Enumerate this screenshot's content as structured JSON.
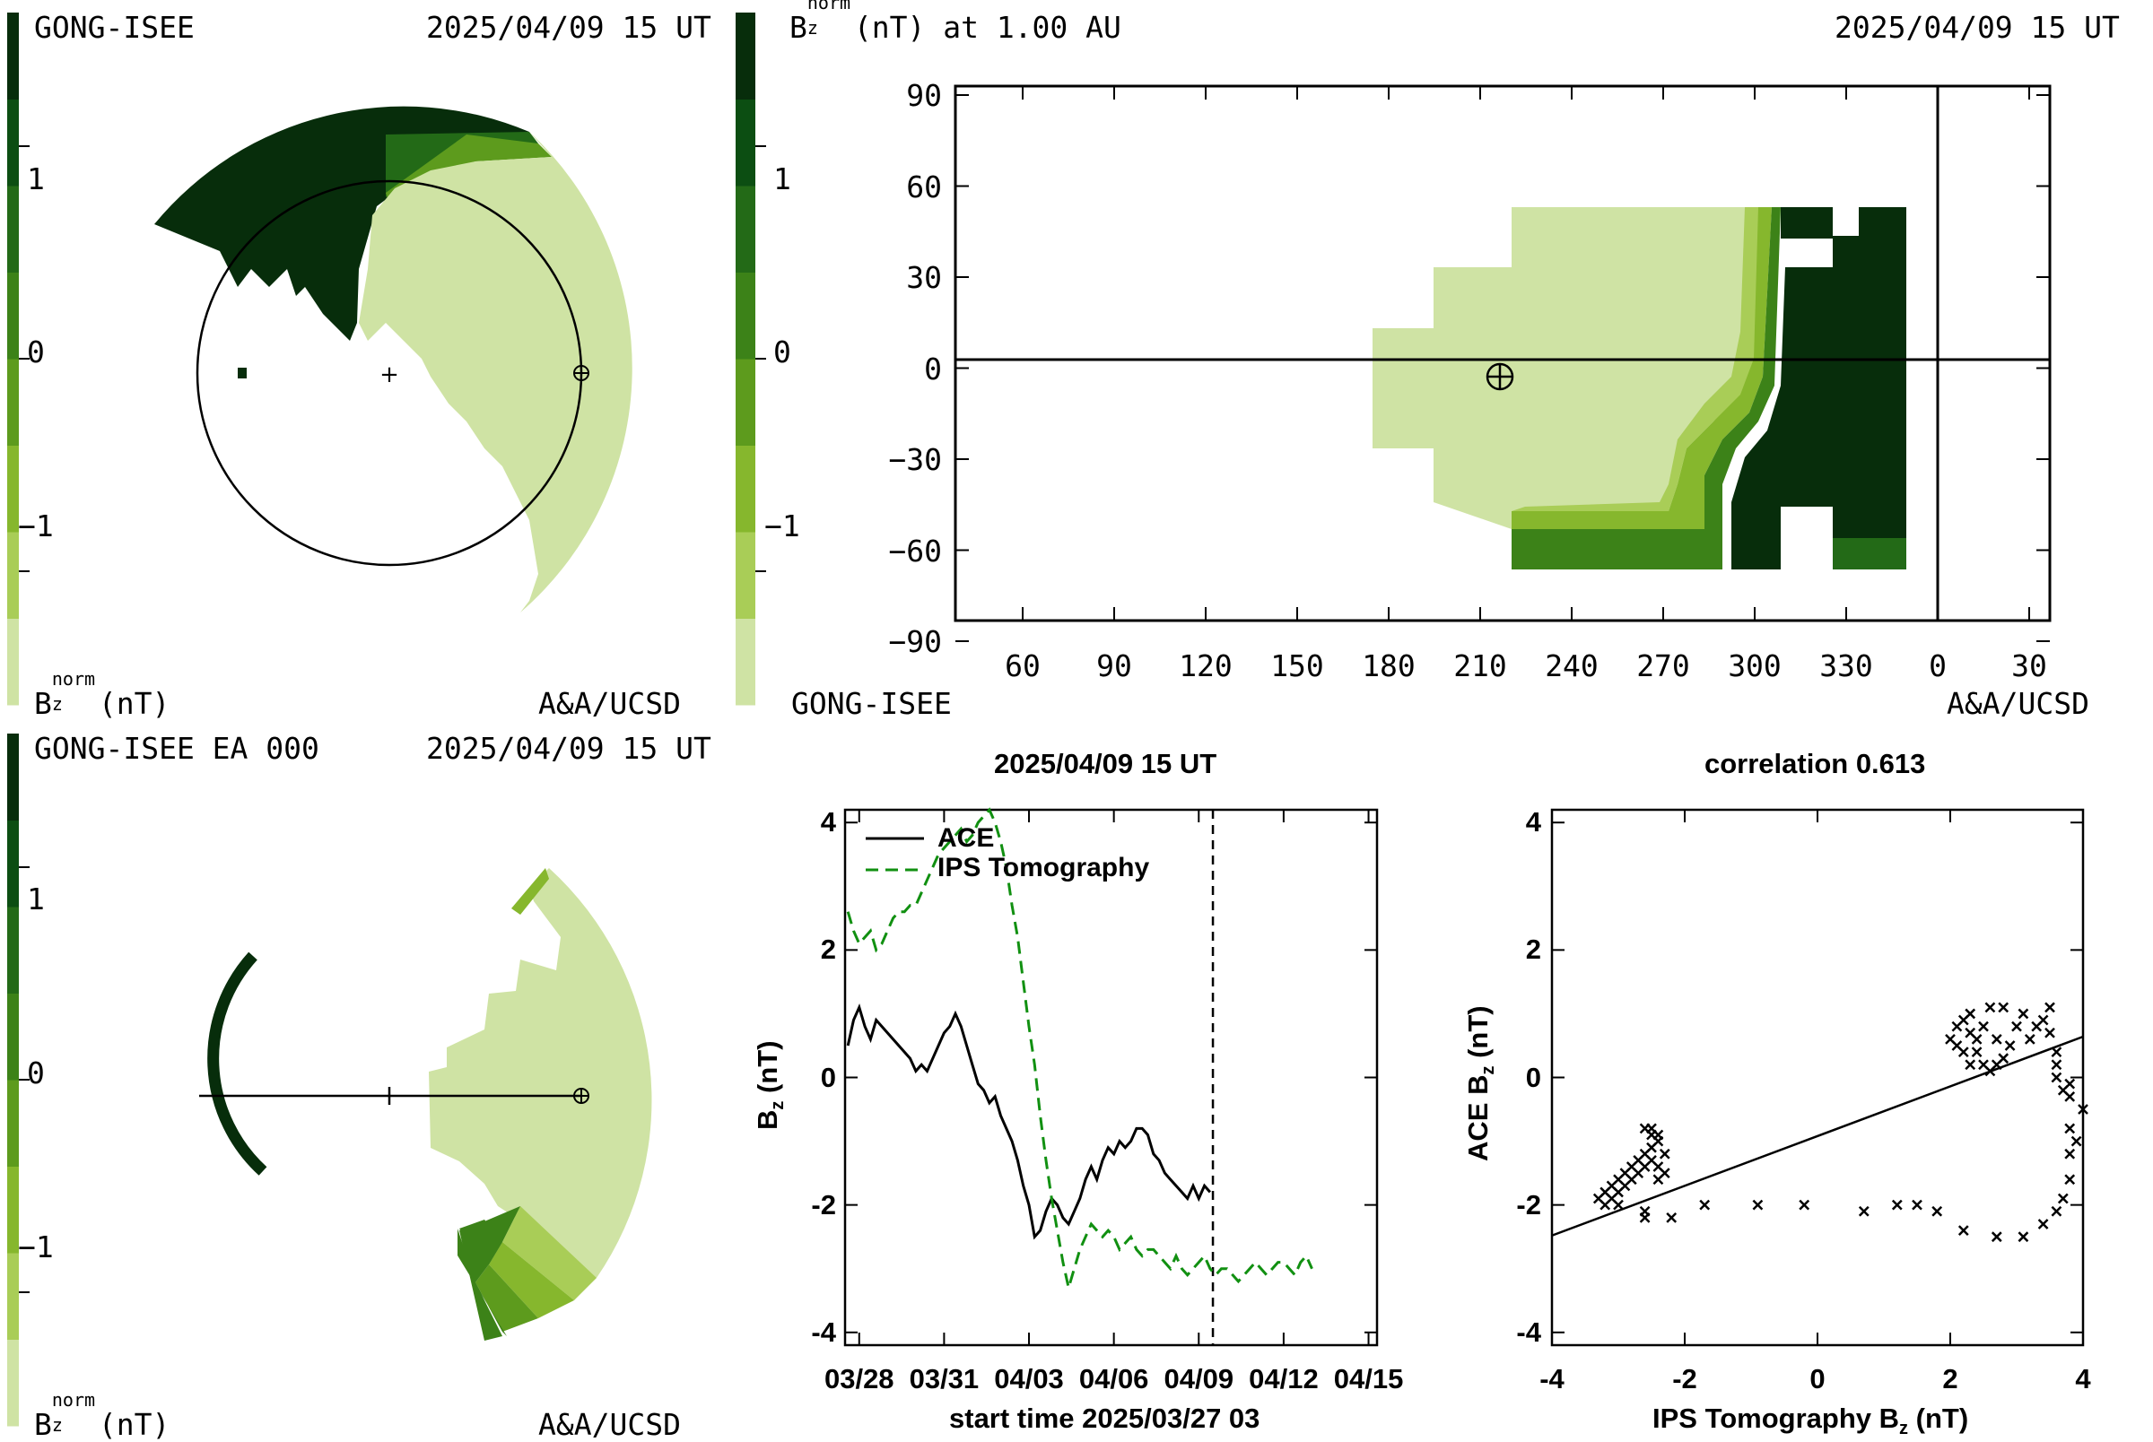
{
  "colors": {
    "scale": [
      "#cfe3a4",
      "#a9cd57",
      "#86b72d",
      "#5d9b1d",
      "#3c8218",
      "#236a17",
      "#0c4e12",
      "#072d0b"
    ],
    "line": "#000000",
    "ips": "#119011",
    "ace": "#000000"
  },
  "panel_tl": {
    "left_label": "GONG-ISEE",
    "right_label": "2025/04/09 15 UT",
    "colorbar_label_main": "B",
    "colorbar_label_sup": "norm",
    "colorbar_label_sub": "z",
    "colorbar_label_unit": "(nT)",
    "credit": "A&A/UCSD",
    "ticks": [
      "1",
      "0",
      "−1"
    ]
  },
  "panel_tr": {
    "title_main": "B",
    "title_sup": "norm",
    "title_sub": "z",
    "title_rest": "(nT) at 1.00 AU",
    "date": "2025/04/09 15 UT",
    "left_label": "GONG-ISEE",
    "credit": "A&A/UCSD",
    "colorbar_ticks": [
      "1",
      "0",
      "−1"
    ],
    "y_ticks": [
      "90",
      "60",
      "30",
      "0",
      "−30",
      "−60",
      "−90"
    ],
    "x_ticks": [
      "60",
      "90",
      "120",
      "150",
      "180",
      "210",
      "240",
      "270",
      "300",
      "330",
      "0",
      "30"
    ]
  },
  "panel_bl": {
    "left_label": "GONG-ISEE EA 000",
    "right_label": "2025/04/09 15 UT",
    "colorbar_label_main": "B",
    "colorbar_label_sup": "norm",
    "colorbar_label_sub": "z",
    "colorbar_label_unit": "(nT)",
    "credit": "A&A/UCSD",
    "ticks": [
      "1",
      "0",
      "−1"
    ]
  },
  "chart_data": [
    {
      "type": "line",
      "title": "2025/04/09 15 UT",
      "xlabel": "start time 2025/03/27 03",
      "ylabel_main": "B",
      "ylabel_sub": "z",
      "ylabel_unit": "(nT)",
      "x_tick_labels": [
        "03/28",
        "03/31",
        "04/03",
        "04/06",
        "04/09",
        "04/12",
        "04/15"
      ],
      "x_tick_days": [
        1,
        4,
        7,
        10,
        13,
        16,
        19
      ],
      "xlim_days": [
        0.5,
        19.3
      ],
      "ylim": [
        -4.2,
        4.2
      ],
      "y_ticks": [
        4,
        2,
        0,
        -2,
        -4
      ],
      "now_day": 13.5,
      "series": [
        {
          "name": "ACE",
          "style": "solid",
          "x": [
            0.6,
            0.8,
            1.0,
            1.2,
            1.4,
            1.6,
            1.8,
            2.0,
            2.2,
            2.4,
            2.6,
            2.8,
            3.0,
            3.2,
            3.4,
            3.6,
            3.8,
            4.0,
            4.2,
            4.4,
            4.6,
            4.8,
            5.0,
            5.2,
            5.4,
            5.6,
            5.8,
            6.0,
            6.2,
            6.4,
            6.6,
            6.8,
            7.0,
            7.2,
            7.4,
            7.6,
            7.8,
            8.0,
            8.2,
            8.4,
            8.6,
            8.8,
            9.0,
            9.2,
            9.4,
            9.6,
            9.8,
            10.0,
            10.2,
            10.4,
            10.6,
            10.8,
            11.0,
            11.2,
            11.4,
            11.6,
            11.8,
            12.0,
            12.2,
            12.4,
            12.6,
            12.8,
            13.0,
            13.2,
            13.4
          ],
          "y": [
            0.5,
            0.9,
            1.1,
            0.8,
            0.6,
            0.9,
            0.8,
            0.7,
            0.6,
            0.5,
            0.4,
            0.3,
            0.1,
            0.2,
            0.1,
            0.3,
            0.5,
            0.7,
            0.8,
            1.0,
            0.8,
            0.5,
            0.2,
            -0.1,
            -0.2,
            -0.4,
            -0.3,
            -0.6,
            -0.8,
            -1.0,
            -1.3,
            -1.7,
            -2.0,
            -2.5,
            -2.4,
            -2.1,
            -1.9,
            -2.0,
            -2.2,
            -2.3,
            -2.1,
            -1.9,
            -1.6,
            -1.4,
            -1.6,
            -1.3,
            -1.1,
            -1.2,
            -1.0,
            -1.1,
            -1.0,
            -0.8,
            -0.8,
            -0.9,
            -1.2,
            -1.3,
            -1.5,
            -1.6,
            -1.7,
            -1.8,
            -1.9,
            -1.7,
            -1.9,
            -1.7,
            -1.8
          ]
        },
        {
          "name": "IPS Tomography",
          "style": "dashed",
          "x": [
            0.6,
            0.8,
            1.0,
            1.2,
            1.4,
            1.6,
            1.8,
            2.0,
            2.2,
            2.4,
            2.6,
            2.8,
            3.0,
            3.2,
            3.4,
            3.6,
            3.8,
            4.0,
            4.2,
            4.4,
            4.6,
            4.8,
            5.0,
            5.2,
            5.4,
            5.6,
            5.8,
            6.0,
            6.2,
            6.4,
            6.6,
            6.8,
            7.0,
            7.2,
            7.4,
            7.6,
            7.8,
            8.0,
            8.2,
            8.4,
            8.6,
            8.8,
            9.0,
            9.2,
            9.4,
            9.6,
            9.8,
            10.0,
            10.2,
            10.4,
            10.6,
            10.8,
            11.0,
            11.2,
            11.4,
            11.6,
            11.8,
            12.0,
            12.2,
            12.4,
            12.6,
            12.8,
            13.0,
            13.2,
            13.4,
            13.6,
            13.8,
            14.0,
            14.2,
            14.4,
            14.6,
            14.8,
            15.0,
            15.2,
            15.4,
            15.6,
            15.8,
            16.0,
            16.2,
            16.4,
            16.6,
            16.8,
            17.0
          ],
          "y": [
            2.6,
            2.3,
            2.1,
            2.2,
            2.3,
            2.0,
            2.1,
            2.3,
            2.5,
            2.6,
            2.6,
            2.7,
            2.7,
            2.9,
            3.1,
            3.3,
            3.5,
            3.6,
            3.7,
            3.8,
            3.9,
            3.7,
            3.8,
            4.0,
            4.1,
            4.2,
            4.0,
            3.7,
            3.3,
            2.7,
            2.2,
            1.5,
            0.8,
            0.2,
            -0.6,
            -1.3,
            -1.9,
            -2.4,
            -2.9,
            -3.3,
            -3.0,
            -2.7,
            -2.5,
            -2.3,
            -2.4,
            -2.5,
            -2.4,
            -2.5,
            -2.7,
            -2.6,
            -2.5,
            -2.7,
            -2.8,
            -2.7,
            -2.7,
            -2.8,
            -2.9,
            -3.0,
            -2.8,
            -3.0,
            -3.1,
            -3.0,
            -2.9,
            -2.8,
            -3.0,
            -3.1,
            -3.0,
            -3.0,
            -3.1,
            -3.2,
            -3.1,
            -3.0,
            -2.9,
            -3.0,
            -3.1,
            -3.0,
            -2.9,
            -2.9,
            -3.0,
            -3.1,
            -2.9,
            -2.8,
            -3.0
          ]
        }
      ]
    },
    {
      "type": "scatter",
      "title": "correlation 0.613",
      "xlabel_main": "IPS Tomography B",
      "xlabel_sub": "z",
      "xlabel_unit": "(nT)",
      "ylabel_main": "ACE B",
      "ylabel_sub": "z",
      "ylabel_unit": "(nT)",
      "xlim": [
        -4,
        4
      ],
      "ylim": [
        -4.2,
        4.2
      ],
      "x_ticks": [
        -4,
        -2,
        0,
        2,
        4
      ],
      "y_ticks": [
        4,
        2,
        0,
        -2,
        -4
      ],
      "fit_line": {
        "slope": 0.39,
        "intercept": -0.92
      },
      "points": [
        [
          -3.3,
          -1.9
        ],
        [
          -3.2,
          -1.8
        ],
        [
          -3.2,
          -2.0
        ],
        [
          -3.1,
          -1.7
        ],
        [
          -3.1,
          -1.9
        ],
        [
          -3.0,
          -1.6
        ],
        [
          -3.0,
          -1.8
        ],
        [
          -3.0,
          -2.0
        ],
        [
          -2.9,
          -1.5
        ],
        [
          -2.9,
          -1.7
        ],
        [
          -2.8,
          -1.4
        ],
        [
          -2.8,
          -1.6
        ],
        [
          -2.7,
          -1.3
        ],
        [
          -2.7,
          -1.5
        ],
        [
          -2.6,
          -1.2
        ],
        [
          -2.6,
          -1.4
        ],
        [
          -2.5,
          -0.9
        ],
        [
          -2.5,
          -1.1
        ],
        [
          -2.5,
          -1.3
        ],
        [
          -2.4,
          -1.0
        ],
        [
          -2.4,
          -1.4
        ],
        [
          -2.4,
          -1.6
        ],
        [
          -2.3,
          -1.2
        ],
        [
          -2.3,
          -1.5
        ],
        [
          -2.6,
          -0.8
        ],
        [
          -2.5,
          -0.8
        ],
        [
          -2.4,
          -0.9
        ],
        [
          -2.6,
          -2.1
        ],
        [
          -2.6,
          -2.2
        ],
        [
          -2.2,
          -2.2
        ],
        [
          -1.7,
          -2.0
        ],
        [
          -0.9,
          -2.0
        ],
        [
          -0.2,
          -2.0
        ],
        [
          0.7,
          -2.1
        ],
        [
          1.2,
          -2.0
        ],
        [
          1.5,
          -2.0
        ],
        [
          1.8,
          -2.1
        ],
        [
          2.2,
          -2.4
        ],
        [
          2.7,
          -2.5
        ],
        [
          3.1,
          -2.5
        ],
        [
          3.4,
          -2.3
        ],
        [
          3.6,
          -2.1
        ],
        [
          3.7,
          -1.9
        ],
        [
          3.8,
          -1.6
        ],
        [
          3.8,
          -1.2
        ],
        [
          3.9,
          -1.0
        ],
        [
          3.8,
          -0.8
        ],
        [
          4.0,
          -0.5
        ],
        [
          3.8,
          -0.3
        ],
        [
          3.7,
          -0.2
        ],
        [
          3.6,
          0.0
        ],
        [
          3.6,
          0.2
        ],
        [
          3.8,
          -0.1
        ],
        [
          3.6,
          0.4
        ],
        [
          3.5,
          0.7
        ],
        [
          3.4,
          0.9
        ],
        [
          3.5,
          1.1
        ],
        [
          3.3,
          0.8
        ],
        [
          3.2,
          0.6
        ],
        [
          3.1,
          1.0
        ],
        [
          3.0,
          0.8
        ],
        [
          2.9,
          0.5
        ],
        [
          2.8,
          0.3
        ],
        [
          2.7,
          0.6
        ],
        [
          2.8,
          1.1
        ],
        [
          2.6,
          1.1
        ],
        [
          2.5,
          0.8
        ],
        [
          2.4,
          0.4
        ],
        [
          2.3,
          0.2
        ],
        [
          2.5,
          0.2
        ],
        [
          2.7,
          0.2
        ],
        [
          2.4,
          0.6
        ],
        [
          2.2,
          0.9
        ],
        [
          2.3,
          1.0
        ],
        [
          2.1,
          0.5
        ],
        [
          2.2,
          0.4
        ],
        [
          2.0,
          0.6
        ],
        [
          2.1,
          0.8
        ],
        [
          2.3,
          0.7
        ],
        [
          2.6,
          0.1
        ]
      ]
    }
  ]
}
